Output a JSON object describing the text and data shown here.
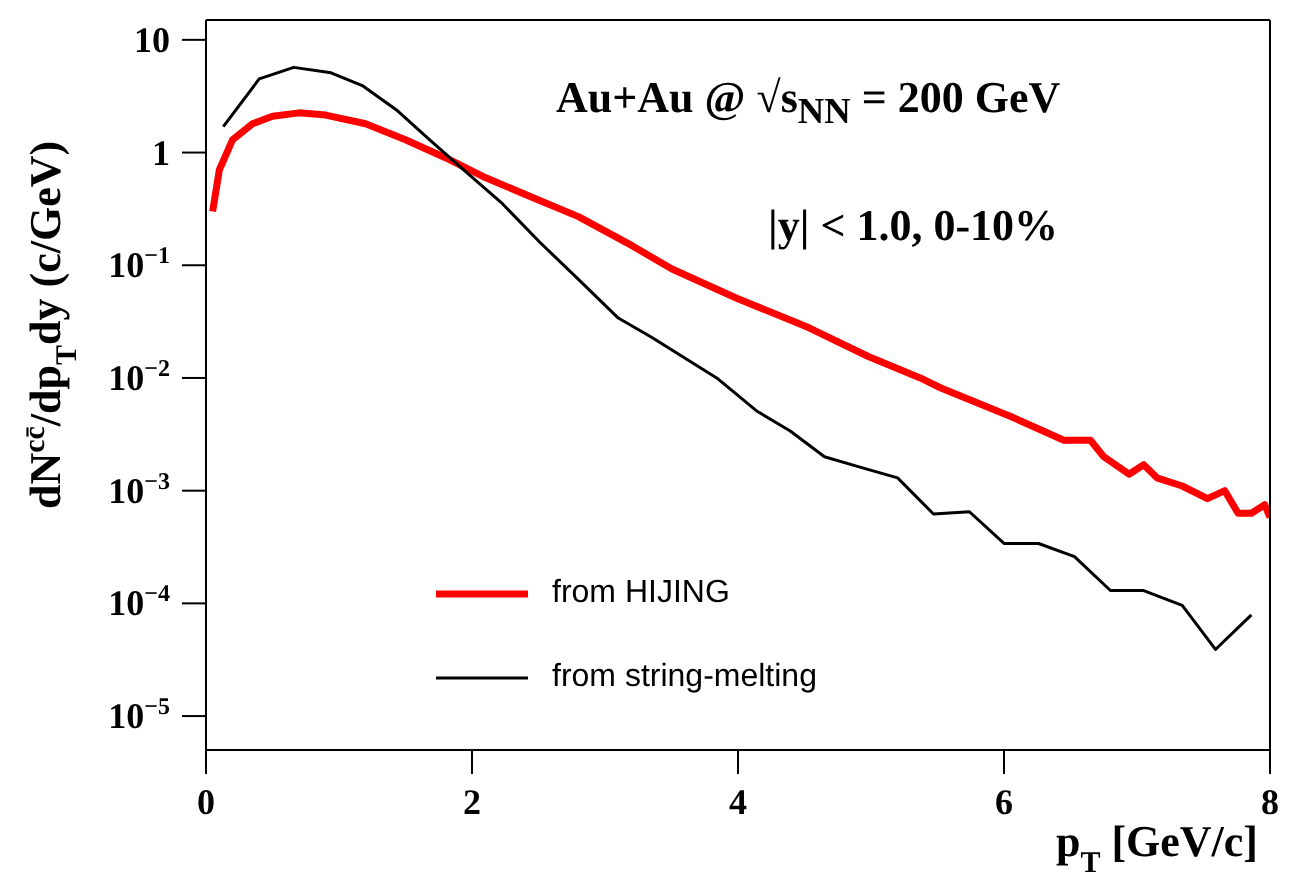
{
  "chart_data": {
    "type": "line",
    "xlabel": "p$_{T}$ [GeV/c]",
    "ylabel": "dN$^{cc̄}$/dp$_{T}$dy (c/GeV)",
    "annotations": [
      "Au+Au @ √s$_{NN}$ = 200 GeV",
      "|y| < 1.0, 0-10%"
    ],
    "log": "y",
    "legend": "bottom left",
    "marker": "none",
    "xlim": [
      0,
      8
    ],
    "xticks": [
      0,
      2,
      4,
      6,
      8
    ],
    "ylim": [
      5e-06,
      15
    ],
    "yticks": [
      {
        "value": 1e-05,
        "label": "10$^{−5}$"
      },
      {
        "value": 0.0001,
        "label": "10$^{−4}$"
      },
      {
        "value": 0.001,
        "label": "10$^{−3}$"
      },
      {
        "value": 0.01,
        "label": "10$^{−2}$"
      },
      {
        "value": 0.1,
        "label": "10$^{−1}$"
      },
      1,
      10
    ],
    "series": [
      {
        "name": "from HIJING",
        "color": "#ff0000",
        "line_style": "solid",
        "x": [
          0.05,
          0.1,
          0.2,
          0.35,
          0.5,
          0.7,
          0.9,
          1.2,
          1.5,
          1.8,
          2.1,
          2.5,
          2.8,
          3.2,
          3.5,
          3.99,
          4.53,
          4.98,
          5.37,
          5.53,
          6.06,
          6.45,
          6.65,
          6.75,
          6.94,
          7.05,
          7.15,
          7.34,
          7.53,
          7.66,
          7.76,
          7.86,
          7.96,
          8.0
        ],
        "values": [
          0.3,
          0.7,
          1.3,
          1.8,
          2.1,
          2.25,
          2.15,
          1.8,
          1.3,
          0.9,
          0.6,
          0.38,
          0.27,
          0.15,
          0.093,
          0.051,
          0.028,
          0.0155,
          0.01,
          0.0081,
          0.0045,
          0.0028,
          0.0028,
          0.002,
          0.0014,
          0.0017,
          0.0013,
          0.0011,
          0.00085,
          0.001,
          0.00063,
          0.00063,
          0.00075,
          0.00058
        ]
      },
      {
        "name": "from string-melting",
        "color": "#000000",
        "line_style": "solid",
        "x": [
          0.13,
          0.4,
          0.66,
          0.94,
          1.18,
          1.43,
          1.68,
          1.92,
          2.22,
          2.51,
          2.81,
          3.1,
          3.35,
          3.84,
          4.14,
          4.39,
          4.65,
          4.93,
          5.2,
          5.47,
          5.74,
          6.0,
          6.26,
          6.53,
          6.8,
          7.05,
          7.34,
          7.59,
          7.86
        ],
        "values": [
          1.7,
          4.5,
          5.7,
          5.1,
          3.9,
          2.4,
          1.3,
          0.73,
          0.36,
          0.16,
          0.073,
          0.034,
          0.023,
          0.01,
          0.0051,
          0.0034,
          0.002,
          0.0016,
          0.0013,
          0.00062,
          0.00065,
          0.00034,
          0.00034,
          0.00026,
          0.00013,
          0.00013,
          9.6e-05,
          3.9e-05,
          7.9e-05
        ]
      }
    ]
  }
}
